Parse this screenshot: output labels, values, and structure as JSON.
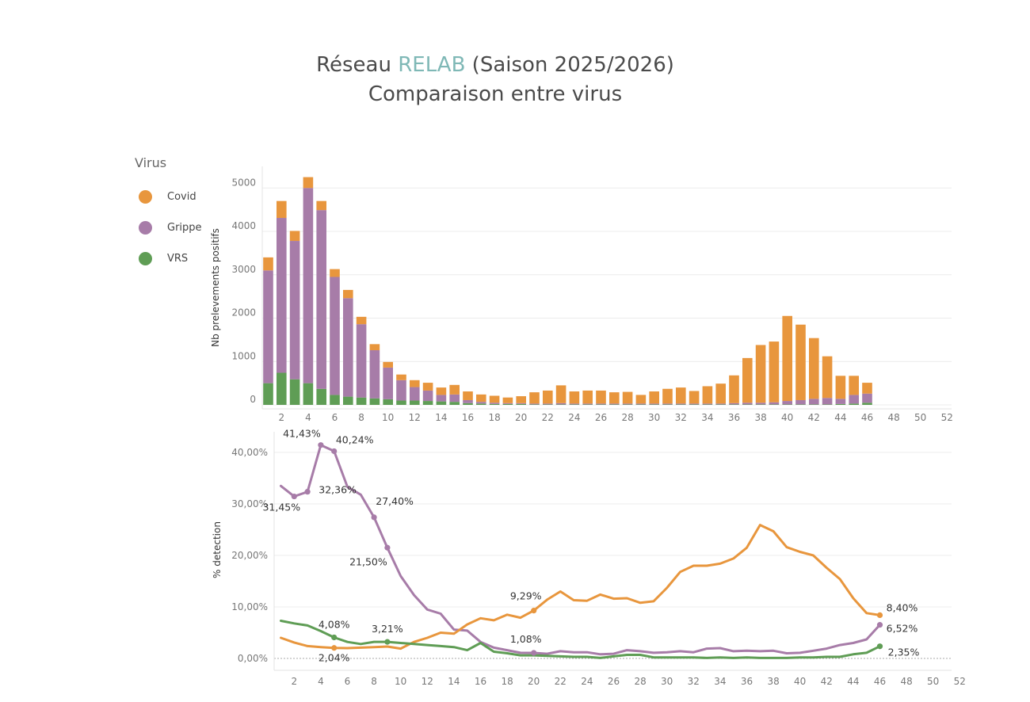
{
  "title": {
    "line1_prefix": "Réseau",
    "line1_accent": "RELAB",
    "line1_suffix": "(Saison 2025/2026)",
    "line2": "Comparaison entre virus"
  },
  "legend": {
    "title": "Virus",
    "items": [
      {
        "label": "Covid",
        "color": "#e8963d"
      },
      {
        "label": "Grippe",
        "color": "#a77ca8"
      },
      {
        "label": "VRS",
        "color": "#5f9d55"
      }
    ]
  },
  "chart_data": [
    {
      "type": "bar",
      "stacked": true,
      "xlabel": "",
      "ylabel": "Nb prelevements positifs",
      "x_ticks": [
        "2",
        "4",
        "6",
        "8",
        "10",
        "12",
        "14",
        "16",
        "18",
        "20",
        "22",
        "24",
        "26",
        "28",
        "30",
        "32",
        "34",
        "36",
        "38",
        "40",
        "42",
        "44",
        "46",
        "48",
        "50",
        "52"
      ],
      "y_ticks": [
        "0",
        "1000",
        "2000",
        "3000",
        "4000",
        "5000"
      ],
      "ylim": [
        0,
        5400
      ],
      "weeks": [
        1,
        2,
        3,
        4,
        5,
        6,
        7,
        8,
        9,
        10,
        11,
        12,
        13,
        14,
        15,
        16,
        17,
        18,
        19,
        20,
        21,
        22,
        23,
        24,
        25,
        26,
        27,
        28,
        29,
        30,
        31,
        32,
        33,
        34,
        35,
        36,
        37,
        38,
        39,
        40,
        41,
        42,
        43,
        44,
        45,
        46
      ],
      "series": [
        {
          "name": "VRS",
          "color": "#5f9d55",
          "values": [
            500,
            740,
            590,
            500,
            370,
            230,
            190,
            170,
            150,
            130,
            100,
            100,
            90,
            80,
            70,
            40,
            30,
            20,
            20,
            20,
            10,
            10,
            10,
            10,
            10,
            10,
            10,
            10,
            10,
            10,
            10,
            10,
            10,
            10,
            10,
            10,
            10,
            10,
            10,
            10,
            10,
            10,
            10,
            20,
            30,
            50
          ]
        },
        {
          "name": "Grippe",
          "color": "#a77ca8",
          "values": [
            2600,
            3570,
            3190,
            4500,
            4120,
            2720,
            2270,
            1690,
            1110,
            730,
            470,
            310,
            240,
            150,
            170,
            70,
            40,
            30,
            20,
            20,
            20,
            20,
            30,
            20,
            20,
            20,
            20,
            20,
            20,
            20,
            20,
            20,
            20,
            20,
            20,
            30,
            40,
            40,
            50,
            80,
            100,
            130,
            150,
            120,
            200,
            210
          ]
        },
        {
          "name": "Covid",
          "color": "#e8963d",
          "values": [
            300,
            390,
            230,
            250,
            210,
            180,
            190,
            170,
            140,
            130,
            130,
            160,
            180,
            170,
            220,
            200,
            170,
            160,
            130,
            160,
            260,
            300,
            410,
            280,
            300,
            300,
            260,
            270,
            200,
            280,
            340,
            370,
            290,
            400,
            460,
            640,
            1030,
            1330,
            1400,
            1960,
            1740,
            1400,
            960,
            530,
            440,
            250
          ]
        }
      ]
    },
    {
      "type": "line",
      "xlabel": "",
      "ylabel": "% detection",
      "x_ticks": [
        "2",
        "4",
        "6",
        "8",
        "10",
        "12",
        "14",
        "16",
        "18",
        "20",
        "22",
        "24",
        "26",
        "28",
        "30",
        "32",
        "34",
        "36",
        "38",
        "40",
        "42",
        "44",
        "46",
        "48",
        "50",
        "52"
      ],
      "y_ticks": [
        "0,00%",
        "10,00%",
        "20,00%",
        "30,00%",
        "40,00%"
      ],
      "ylim": [
        0,
        45
      ],
      "weeks": [
        1,
        2,
        3,
        4,
        5,
        6,
        7,
        8,
        9,
        10,
        11,
        12,
        13,
        14,
        15,
        16,
        17,
        18,
        19,
        20,
        21,
        22,
        23,
        24,
        25,
        26,
        27,
        28,
        29,
        30,
        31,
        32,
        33,
        34,
        35,
        36,
        37,
        38,
        39,
        40,
        41,
        42,
        43,
        44,
        45,
        46
      ],
      "series": [
        {
          "name": "Grippe",
          "color": "#a77ca8",
          "values": [
            33.5,
            31.45,
            32.36,
            41.43,
            40.24,
            33.3,
            31.8,
            27.4,
            21.5,
            16.0,
            12.3,
            9.5,
            8.7,
            5.6,
            5.4,
            3.2,
            2.1,
            1.6,
            1.1,
            1.08,
            0.9,
            1.4,
            1.2,
            1.2,
            0.8,
            0.9,
            1.6,
            1.4,
            1.1,
            1.2,
            1.4,
            1.2,
            1.9,
            2.0,
            1.4,
            1.5,
            1.4,
            1.5,
            1.0,
            1.1,
            1.5,
            1.9,
            2.6,
            3.0,
            3.7,
            6.52
          ]
        },
        {
          "name": "Covid",
          "color": "#e8963d",
          "values": [
            4.0,
            3.1,
            2.4,
            2.2,
            2.04,
            2.0,
            2.1,
            2.2,
            2.3,
            1.9,
            3.2,
            4.0,
            5.0,
            4.8,
            6.6,
            7.8,
            7.4,
            8.5,
            7.9,
            9.29,
            11.4,
            13.0,
            11.3,
            11.2,
            12.4,
            11.6,
            11.7,
            10.8,
            11.1,
            13.7,
            16.8,
            18.0,
            18.0,
            18.4,
            19.4,
            21.5,
            25.9,
            24.7,
            21.6,
            20.7,
            20.0,
            17.6,
            15.4,
            11.7,
            8.8,
            8.4
          ]
        },
        {
          "name": "VRS",
          "color": "#5f9d55",
          "values": [
            7.3,
            6.8,
            6.4,
            5.3,
            4.08,
            3.2,
            2.8,
            3.21,
            3.21,
            3.0,
            2.8,
            2.6,
            2.4,
            2.2,
            1.6,
            3.0,
            1.3,
            1.0,
            0.6,
            0.6,
            0.5,
            0.4,
            0.3,
            0.3,
            0.1,
            0.4,
            0.7,
            0.7,
            0.2,
            0.2,
            0.2,
            0.2,
            0.1,
            0.2,
            0.1,
            0.2,
            0.1,
            0.1,
            0.1,
            0.2,
            0.2,
            0.3,
            0.3,
            0.8,
            1.1,
            2.35
          ]
        }
      ],
      "annotations": [
        {
          "series": "Grippe",
          "week": 2,
          "text": "31,45%"
        },
        {
          "series": "Grippe",
          "week": 3,
          "text": "32,36%"
        },
        {
          "series": "Grippe",
          "week": 4,
          "text": "41,43%"
        },
        {
          "series": "Grippe",
          "week": 5,
          "text": "40,24%"
        },
        {
          "series": "Grippe",
          "week": 8,
          "text": "27,40%"
        },
        {
          "series": "Grippe",
          "week": 9,
          "text": "21,50%"
        },
        {
          "series": "Grippe",
          "week": 20,
          "text": "1,08%"
        },
        {
          "series": "Grippe",
          "week": 46,
          "text": "6,52%"
        },
        {
          "series": "Covid",
          "week": 5,
          "text": "2,04%"
        },
        {
          "series": "Covid",
          "week": 20,
          "text": "9,29%"
        },
        {
          "series": "Covid",
          "week": 46,
          "text": "8,40%"
        },
        {
          "series": "VRS",
          "week": 5,
          "text": "4,08%"
        },
        {
          "series": "VRS",
          "week": 9,
          "text": "3,21%"
        },
        {
          "series": "VRS",
          "week": 46,
          "text": "2,35%"
        }
      ]
    }
  ]
}
